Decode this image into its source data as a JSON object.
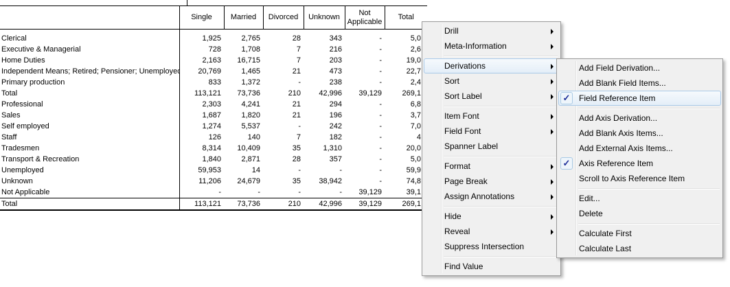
{
  "table": {
    "corner_label": "",
    "columns": [
      "Single",
      "Married",
      "Divorced",
      "Unknown",
      "Not Applicable",
      "Total"
    ],
    "rows": [
      {
        "label": "Clerical",
        "values": [
          "1,925",
          "2,765",
          "28",
          "343",
          "-",
          "5,0"
        ]
      },
      {
        "label": "Executive & Managerial",
        "values": [
          "728",
          "1,708",
          "7",
          "216",
          "-",
          "2,6"
        ]
      },
      {
        "label": "Home Duties",
        "values": [
          "2,163",
          "16,715",
          "7",
          "203",
          "-",
          "19,0"
        ]
      },
      {
        "label": "Independent Means; Retired; Pensioner; Unemployed",
        "values": [
          "20,769",
          "1,465",
          "21",
          "473",
          "-",
          "22,7"
        ]
      },
      {
        "label": "Primary production",
        "values": [
          "833",
          "1,372",
          "-",
          "238",
          "-",
          "2,4"
        ]
      },
      {
        "label": "Total",
        "values": [
          "113,121",
          "73,736",
          "210",
          "42,996",
          "39,129",
          "269,1"
        ]
      },
      {
        "label": "Professional",
        "values": [
          "2,303",
          "4,241",
          "21",
          "294",
          "-",
          "6,8"
        ]
      },
      {
        "label": "Sales",
        "values": [
          "1,687",
          "1,820",
          "21",
          "196",
          "-",
          "3,7"
        ]
      },
      {
        "label": "Self employed",
        "values": [
          "1,274",
          "5,537",
          "-",
          "242",
          "-",
          "7,0"
        ]
      },
      {
        "label": "Staff",
        "values": [
          "126",
          "140",
          "7",
          "182",
          "-",
          "4"
        ]
      },
      {
        "label": "Tradesmen",
        "values": [
          "8,314",
          "10,409",
          "35",
          "1,310",
          "-",
          "20,0"
        ]
      },
      {
        "label": "Transport & Recreation",
        "values": [
          "1,840",
          "2,871",
          "28",
          "357",
          "-",
          "5,0"
        ]
      },
      {
        "label": "Unemployed",
        "values": [
          "59,953",
          "14",
          "-",
          "-",
          "-",
          "59,9"
        ]
      },
      {
        "label": "Unknown",
        "values": [
          "11,206",
          "24,679",
          "35",
          "38,942",
          "-",
          "74,8"
        ]
      },
      {
        "label": "Not Applicable",
        "values": [
          "-",
          "-",
          "-",
          "-",
          "39,129",
          "39,1"
        ]
      },
      {
        "label": "Total",
        "values": [
          "113,121",
          "73,736",
          "210",
          "42,996",
          "39,129",
          "269,1"
        ],
        "grand": true
      }
    ]
  },
  "context_menu": {
    "items": [
      {
        "label": "Drill",
        "submenu": true
      },
      {
        "label": "Meta-Information",
        "submenu": true
      },
      {
        "type": "separator"
      },
      {
        "label": "Derivations",
        "submenu": true,
        "highlighted": true
      },
      {
        "label": "Sort",
        "submenu": true
      },
      {
        "label": "Sort Label",
        "submenu": true
      },
      {
        "type": "separator"
      },
      {
        "label": "Item Font",
        "submenu": true
      },
      {
        "label": "Field Font",
        "submenu": true
      },
      {
        "label": "Spanner Label"
      },
      {
        "type": "separator"
      },
      {
        "label": "Format",
        "submenu": true
      },
      {
        "label": "Page Break",
        "submenu": true
      },
      {
        "label": "Assign Annotations",
        "submenu": true
      },
      {
        "type": "separator"
      },
      {
        "label": "Hide",
        "submenu": true
      },
      {
        "label": "Reveal",
        "submenu": true
      },
      {
        "label": "Suppress Intersection"
      },
      {
        "type": "separator"
      },
      {
        "label": "Find Value"
      }
    ]
  },
  "derivations_submenu": {
    "items": [
      {
        "label": "Add Field Derivation..."
      },
      {
        "label": "Add Blank Field Items..."
      },
      {
        "label": "Field Reference Item",
        "checked": true,
        "highlighted": true
      },
      {
        "type": "separator"
      },
      {
        "label": "Add Axis Derivation..."
      },
      {
        "label": "Add Blank Axis Items..."
      },
      {
        "label": "Add External Axis Items..."
      },
      {
        "label": "Axis Reference Item",
        "checked": true
      },
      {
        "label": "Scroll to Axis Reference Item"
      },
      {
        "type": "separator"
      },
      {
        "label": "Edit..."
      },
      {
        "label": "Delete"
      },
      {
        "type": "separator"
      },
      {
        "label": "Calculate First"
      },
      {
        "label": "Calculate Last"
      }
    ]
  },
  "icons": {
    "checkmark": "✓",
    "submenu_arrow": "right-triangle",
    "cursor": "windows-arrow"
  },
  "colors": {
    "menu_bg": "#f0f0f0",
    "menu_border": "#9a9a9a",
    "highlight_border": "#a9c9e8",
    "highlight_bg": "#e4eef8",
    "check_color": "#1e2f9a",
    "table_border": "#000000",
    "table_bg": "#ffffff"
  }
}
